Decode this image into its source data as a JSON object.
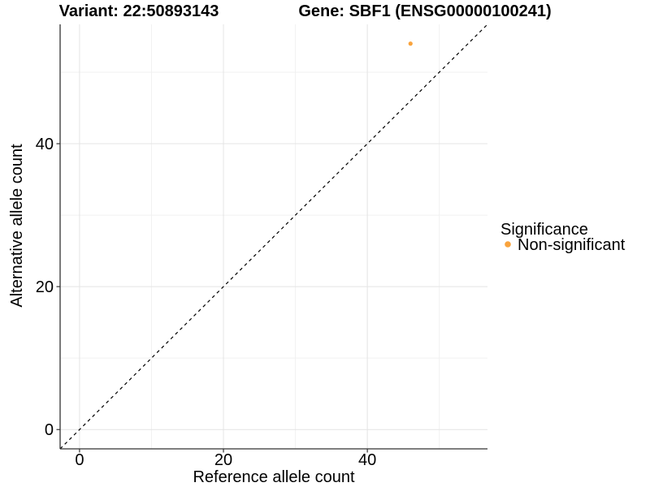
{
  "titles": {
    "variant": "Variant: 22:50893143",
    "gene": "Gene: SBF1 (ENSG00000100241)"
  },
  "legend": {
    "title": "Significance",
    "items": [
      {
        "label": "Non-significant",
        "color": "#F9A33C"
      }
    ]
  },
  "chart_data": {
    "type": "scatter",
    "xlabel": "Reference allele count",
    "ylabel": "Alternative allele count",
    "xlim": [
      -2.7,
      56.7
    ],
    "ylim": [
      -2.7,
      56.7
    ],
    "xticks": [
      0,
      20,
      40
    ],
    "yticks": [
      0,
      20,
      40
    ],
    "xminor": [
      10,
      30,
      50
    ],
    "yminor": [
      10,
      30,
      50
    ],
    "grid": "major+minor",
    "legend_position": "right",
    "points": [
      {
        "x": 46,
        "y": 54,
        "series": "Non-significant",
        "color": "#F9A33C"
      }
    ],
    "reference_line": {
      "type": "identity",
      "slope": 1,
      "intercept": 0,
      "style": "dashed",
      "color": "#000000"
    }
  },
  "colors": {
    "background": "#FFFFFF",
    "grid_major": "#E4E4E4",
    "grid_minor": "#F1F1F1",
    "axis": "#333333",
    "text": "#000000"
  }
}
